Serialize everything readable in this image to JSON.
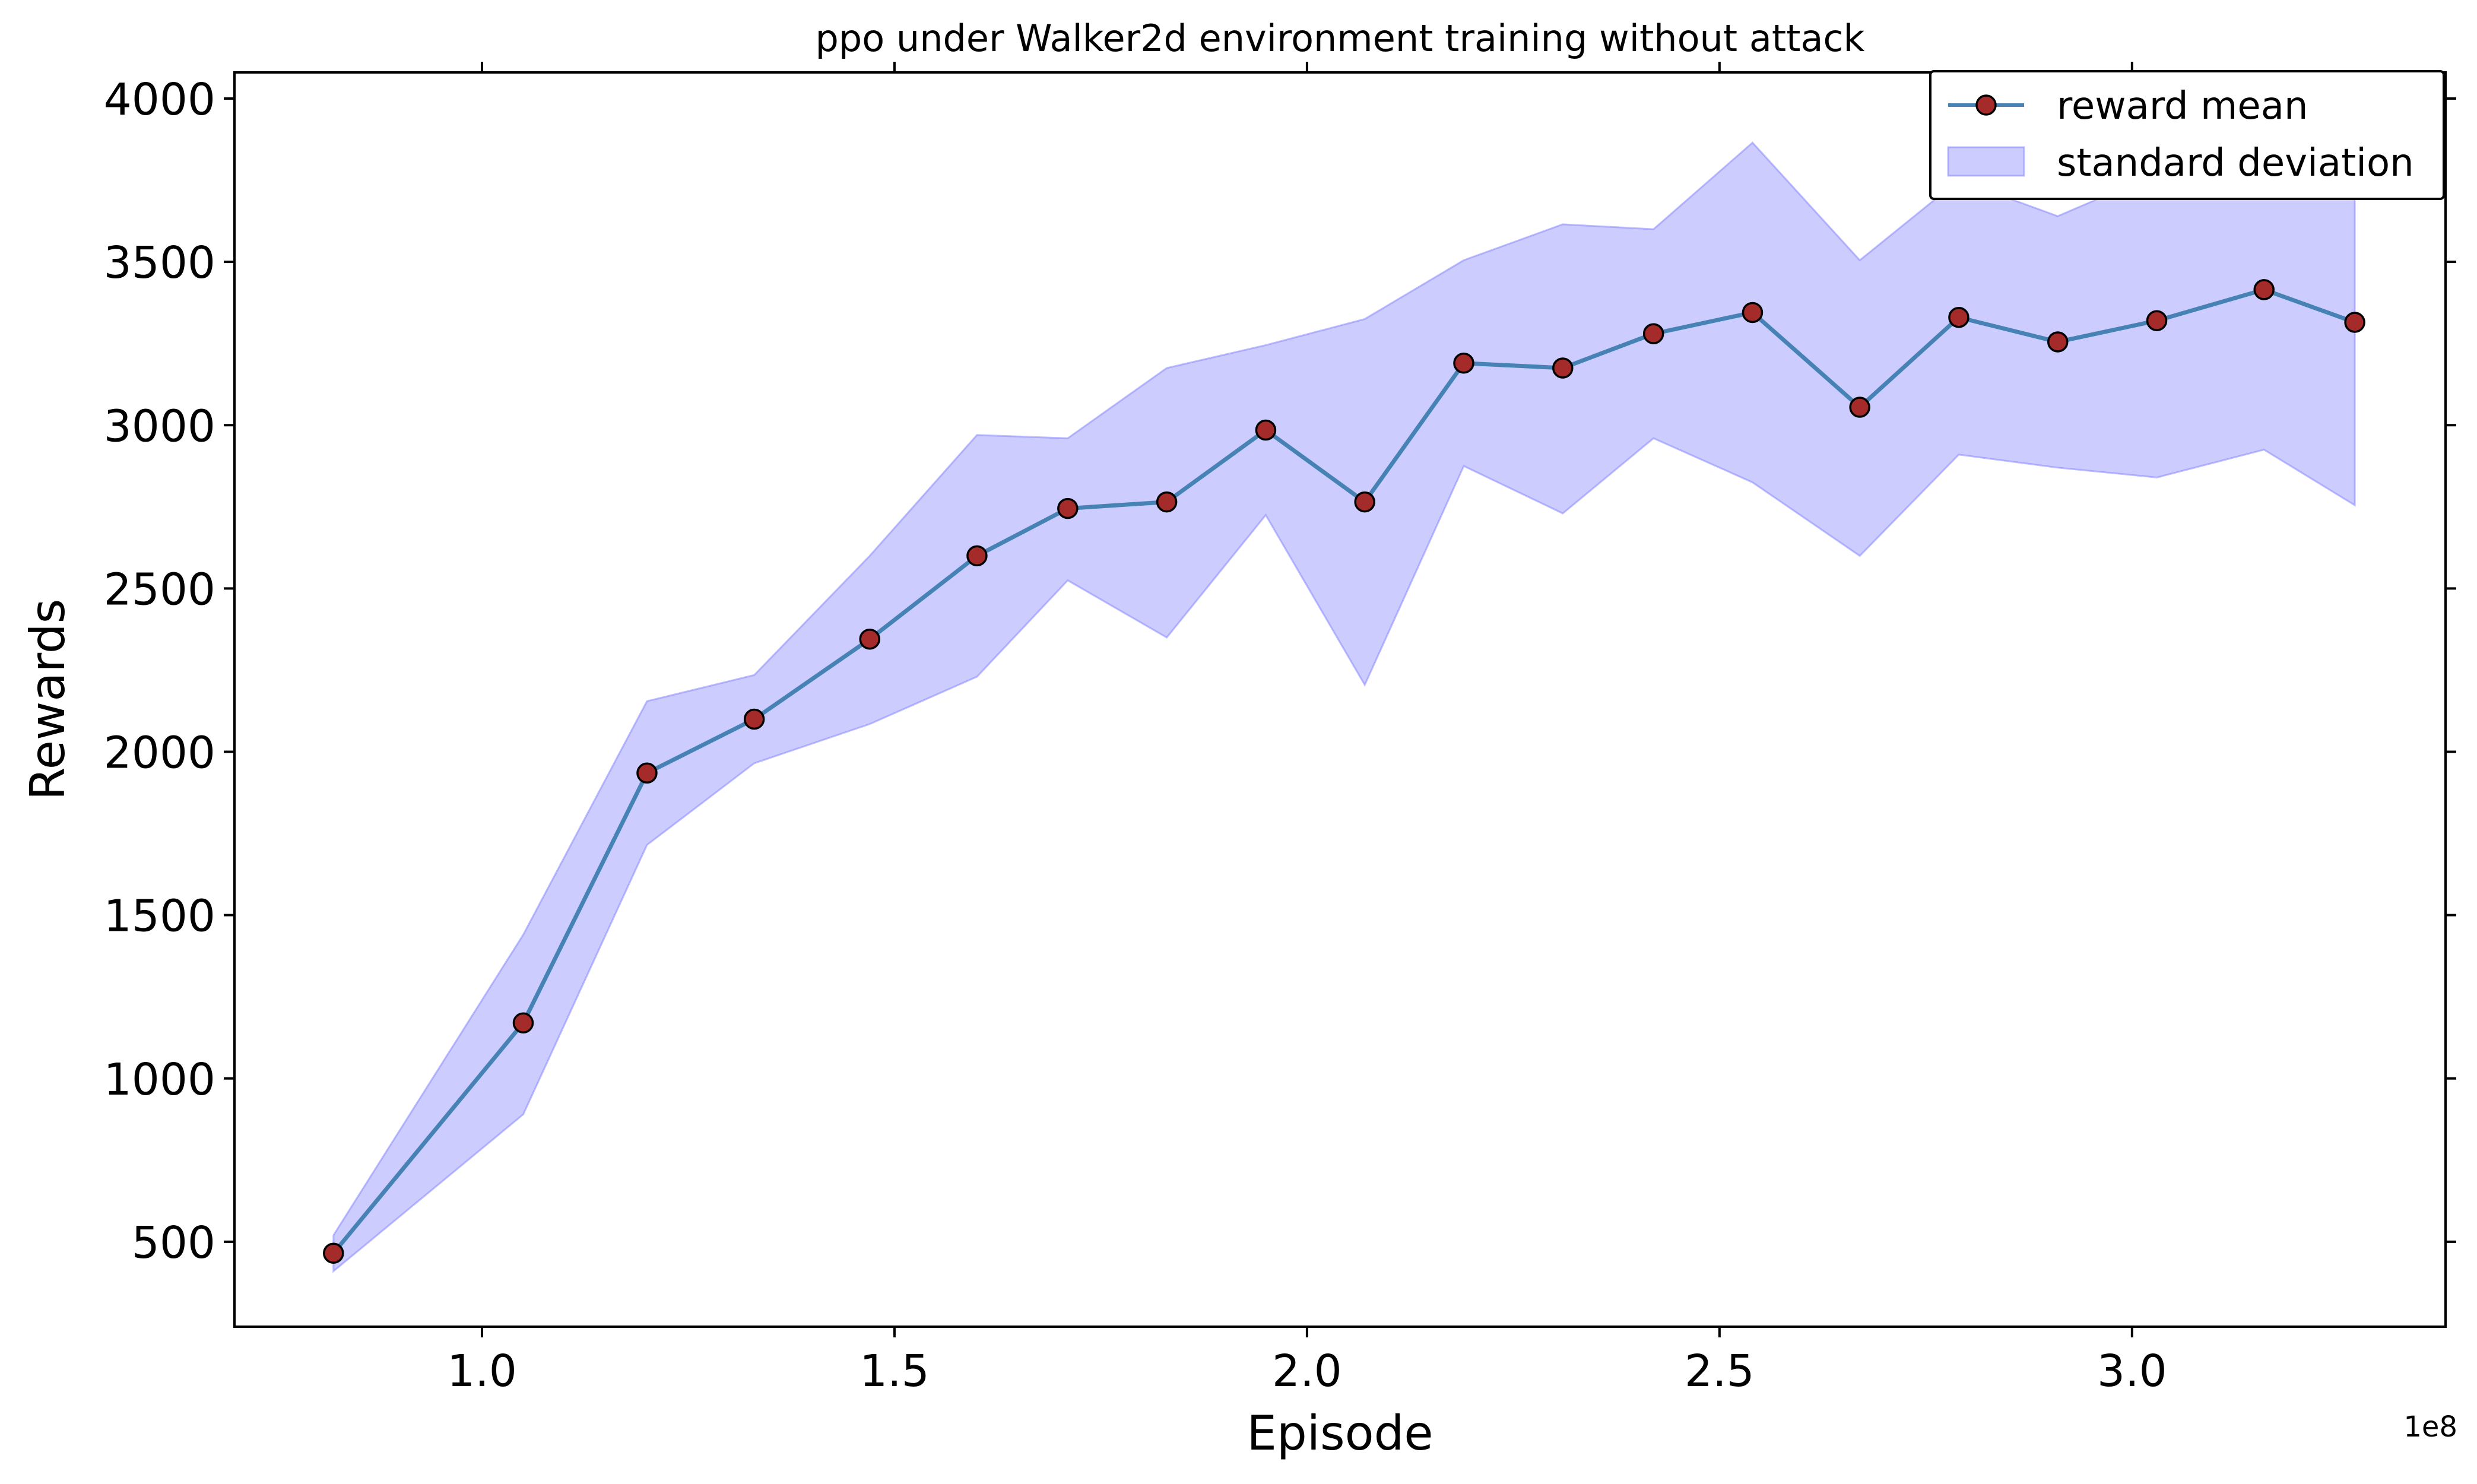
{
  "chart_data": {
    "type": "line",
    "title": "ppo under Walker2d environment training without attack",
    "xlabel": "Episode",
    "ylabel": "Rewards",
    "x_offset_label": "1e8",
    "x_scale_exponent": 8,
    "xlim": [
      0.7,
      3.38
    ],
    "ylim": [
      240,
      4080
    ],
    "xticks": [
      1.0,
      1.5,
      2.0,
      2.5,
      3.0
    ],
    "xtick_labels": [
      "1.0",
      "1.5",
      "2.0",
      "2.5",
      "3.0"
    ],
    "yticks": [
      500,
      1000,
      1500,
      2000,
      2500,
      3000,
      3500,
      4000
    ],
    "ytick_labels": [
      "500",
      "1000",
      "1500",
      "2000",
      "2500",
      "3000",
      "3500",
      "4000"
    ],
    "grid": false,
    "legend_position": "top-right",
    "x": [
      0.82,
      1.05,
      1.2,
      1.33,
      1.47,
      1.6,
      1.71,
      1.83,
      1.95,
      2.07,
      2.19,
      2.31,
      2.42,
      2.54,
      2.67,
      2.79,
      2.91,
      3.03,
      3.16,
      3.27
    ],
    "series": [
      {
        "name": "reward mean",
        "type": "line",
        "line_color": "#4682b4",
        "marker_color": "#a52a2a",
        "values": [
          465,
          1170,
          1935,
          2100,
          2345,
          2600,
          2745,
          2765,
          2985,
          2765,
          3190,
          3175,
          3280,
          3345,
          3055,
          3330,
          3255,
          3320,
          3415,
          3315
        ]
      },
      {
        "name": "standard deviation",
        "type": "band",
        "color": "#8080ff",
        "lower": [
          410,
          890,
          1715,
          1965,
          2085,
          2230,
          2525,
          2350,
          2725,
          2205,
          2875,
          2730,
          2960,
          2825,
          2600,
          2910,
          2870,
          2840,
          2925,
          2755
        ],
        "upper": [
          520,
          1440,
          2155,
          2235,
          2600,
          2970,
          2960,
          3175,
          3245,
          3325,
          3505,
          3615,
          3600,
          3865,
          3505,
          3750,
          3640,
          3770,
          3900,
          3880
        ]
      }
    ]
  }
}
